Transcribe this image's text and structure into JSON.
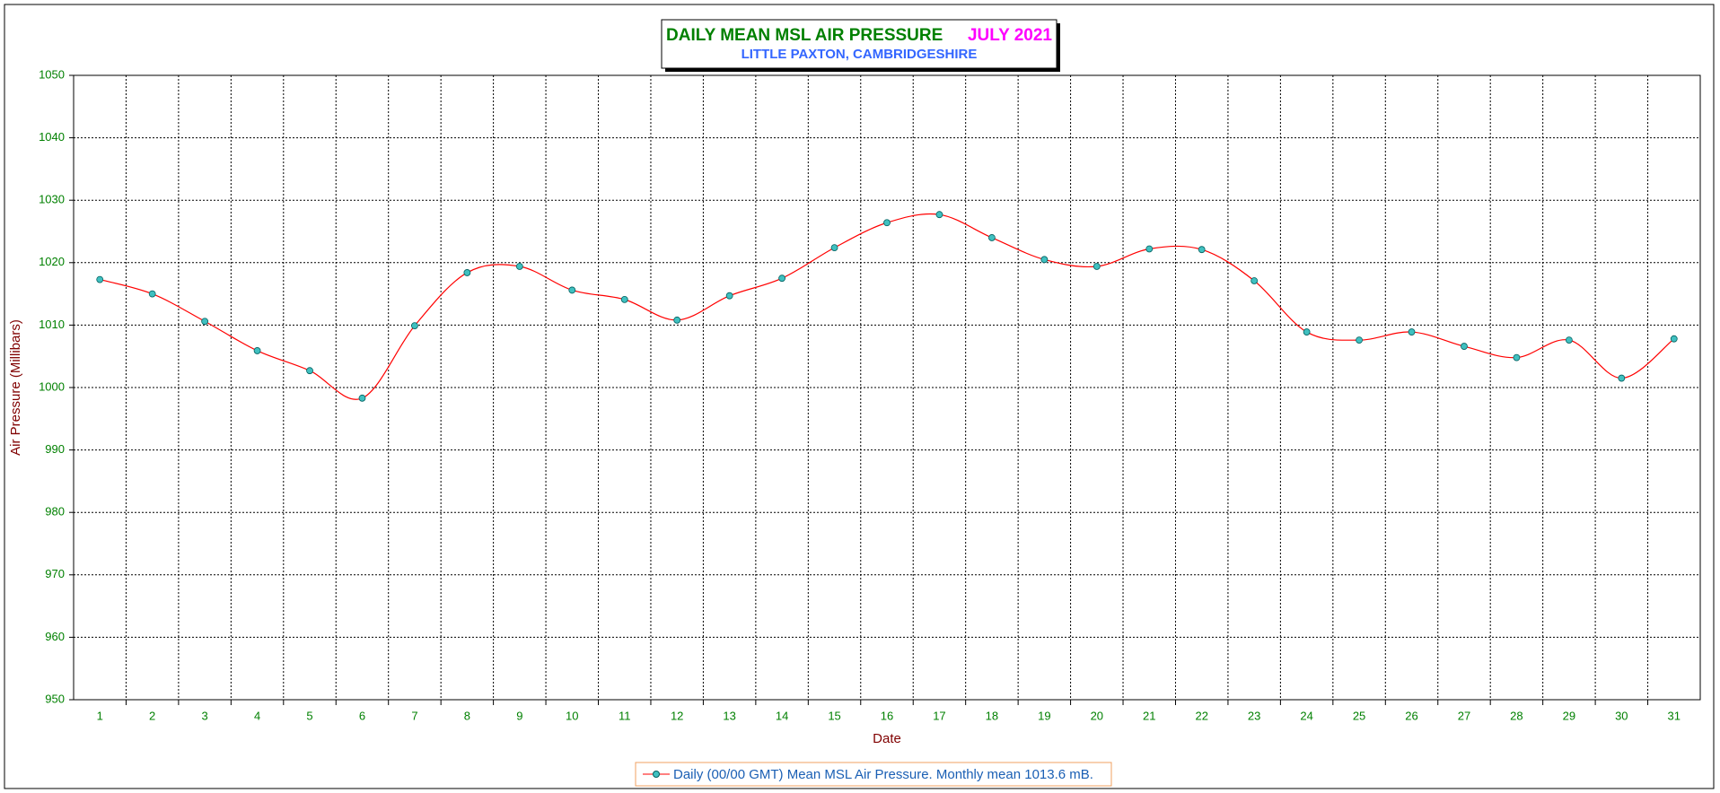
{
  "chart_data": {
    "type": "line",
    "title": "DAILY MEAN MSL AIR PRESSURE",
    "title_date": "JULY 2021",
    "subtitle": "LITTLE PAXTON, CAMBRIDGESHIRE",
    "x_label": "Date",
    "y_label": "Air Pressure (Millibars)",
    "categories": [
      "1",
      "2",
      "3",
      "4",
      "5",
      "6",
      "7",
      "8",
      "9",
      "10",
      "11",
      "12",
      "13",
      "14",
      "15",
      "16",
      "17",
      "18",
      "19",
      "20",
      "21",
      "22",
      "23",
      "24",
      "25",
      "26",
      "27",
      "28",
      "29",
      "30",
      "31"
    ],
    "series": [
      {
        "name": "Daily (00/00 GMT) Mean MSL Air Pressure. Monthly mean 1013.6 mB.",
        "color": "#ff0000",
        "marker_color": "#40c0c0",
        "values": [
          1017.3,
          1015.0,
          1010.6,
          1005.9,
          1002.7,
          998.3,
          1009.9,
          1018.4,
          1019.4,
          1015.6,
          1014.1,
          1010.8,
          1014.7,
          1017.5,
          1022.4,
          1026.4,
          1027.7,
          1024.0,
          1020.5,
          1019.4,
          1022.2,
          1022.1,
          1017.1,
          1008.9,
          1007.6,
          1008.9,
          1006.6,
          1004.8,
          1007.6,
          1001.5,
          1007.8
        ]
      }
    ],
    "ylim": [
      950,
      1050
    ],
    "yticks": [
      950,
      960,
      970,
      980,
      990,
      1000,
      1010,
      1020,
      1030,
      1040,
      1050
    ],
    "grid": true,
    "legend": "bottom"
  }
}
